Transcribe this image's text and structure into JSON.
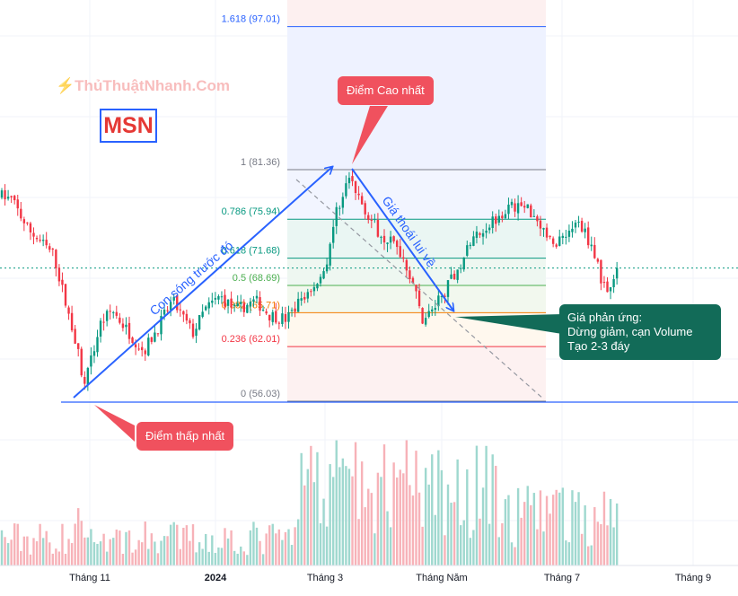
{
  "watermark": "ThủThuậtNhanh.Com",
  "ticker": "MSN",
  "chart_data": {
    "type": "candlestick",
    "title": "",
    "x_ticks": [
      {
        "label": "Tháng 11",
        "bold": false
      },
      {
        "label": "2024",
        "bold": true
      },
      {
        "label": "Tháng 3",
        "bold": false
      },
      {
        "label": "Tháng Năm",
        "bold": false
      },
      {
        "label": "Tháng 7",
        "bold": false
      },
      {
        "label": "Tháng 9",
        "bold": false
      }
    ],
    "fib_levels": [
      {
        "ratio": 1.618,
        "label": "1.618 (97.01)",
        "value": 97.01,
        "color": "#2962ff"
      },
      {
        "ratio": 1,
        "label": "1 (81.36)",
        "value": 81.36,
        "color": "#787b86"
      },
      {
        "ratio": 0.786,
        "label": "0.786 (75.94)",
        "value": 75.94,
        "color": "#089981"
      },
      {
        "ratio": 0.618,
        "label": "0.618 (71.68)",
        "value": 71.68,
        "color": "#089981"
      },
      {
        "ratio": 0.5,
        "label": "0.5 (68.69)",
        "value": 68.69,
        "color": "#4caf50"
      },
      {
        "ratio": 0.382,
        "label": "0.382 (65.71)",
        "value": 65.71,
        "color": "#f57c00"
      },
      {
        "ratio": 0.236,
        "label": "0.236 (62.01)",
        "value": 62.01,
        "color": "#f23645"
      },
      {
        "ratio": 0,
        "label": "0 (56.03)",
        "value": 56.03,
        "color": "#787b86"
      }
    ],
    "price_range": [
      54,
      99
    ],
    "last_price": 70.6,
    "up_color": "#089981",
    "down_color": "#f23645",
    "annotations": {
      "wave_label": "Con sóng trước đó",
      "pullback_label": "Giá thoái lui về"
    }
  },
  "callouts": {
    "low": "Điểm thấp nhất",
    "high": "Điểm Cao nhất",
    "reaction_lines": [
      "Giá phản ứng:",
      "Dừng giảm, cạn Volume",
      "Tạo 2-3 đáy"
    ]
  }
}
